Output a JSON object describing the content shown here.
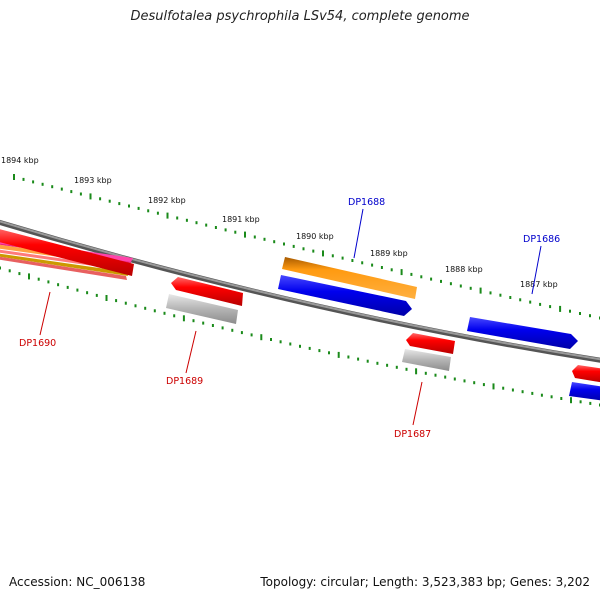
{
  "title": "Desulfotalea psychrophila LSv54, complete genome",
  "footer": {
    "accession": "Accession: NC_006138",
    "topology": "Topology: circular; Length: 3,523,383 bp; Genes: 3,202"
  },
  "colors": {
    "tick": "#1a8a1a",
    "backbone": "#777777",
    "label_forward": "#0000cc",
    "label_reverse": "#cc0000",
    "gene_red": "#ee0000",
    "gene_blue": "#0000ee",
    "gene_orange": "#ff9900",
    "gene_grey": "#b0b0b0"
  },
  "ruler_labels": [
    {
      "text": "1894 kbp",
      "kbp": 1894
    },
    {
      "text": "1893 kbp",
      "kbp": 1893
    },
    {
      "text": "1892 kbp",
      "kbp": 1892
    },
    {
      "text": "1891 kbp",
      "kbp": 1891
    },
    {
      "text": "1890 kbp",
      "kbp": 1890
    },
    {
      "text": "1889 kbp",
      "kbp": 1889
    },
    {
      "text": "1888 kbp",
      "kbp": 1888
    },
    {
      "text": "1887 kbp",
      "kbp": 1887
    }
  ],
  "gene_labels": [
    {
      "text": "DP1688",
      "strand": "forward"
    },
    {
      "text": "DP1686",
      "strand": "forward"
    },
    {
      "text": "DP1690",
      "strand": "reverse"
    },
    {
      "text": "DP1689",
      "strand": "reverse"
    },
    {
      "text": "DP1687",
      "strand": "reverse"
    }
  ]
}
